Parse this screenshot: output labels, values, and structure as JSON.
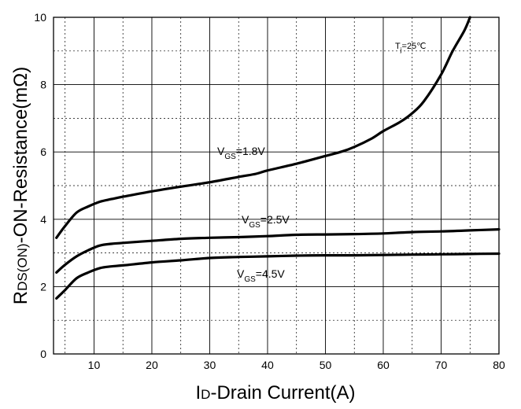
{
  "chart_data": {
    "type": "line",
    "xlim": [
      3,
      80
    ],
    "ylim": [
      0,
      10
    ],
    "x_ticks": [
      {
        "v": 10,
        "label": "10"
      },
      {
        "v": 20,
        "label": "20"
      },
      {
        "v": 30,
        "label": "30"
      },
      {
        "v": 40,
        "label": "40"
      },
      {
        "v": 50,
        "label": "50"
      },
      {
        "v": 60,
        "label": "60"
      },
      {
        "v": 70,
        "label": "70"
      },
      {
        "v": 80,
        "label": "80"
      }
    ],
    "y_ticks": [
      {
        "v": 0,
        "label": "0"
      },
      {
        "v": 2,
        "label": "2"
      },
      {
        "v": 4,
        "label": "4"
      },
      {
        "v": 6,
        "label": "6"
      },
      {
        "v": 8,
        "label": "8"
      },
      {
        "v": 10,
        "label": "10"
      }
    ],
    "x_grid_dashed": [
      5,
      15,
      25,
      35,
      45,
      55,
      65,
      75
    ],
    "y_grid_dashed": [
      1,
      3,
      5,
      7,
      9
    ],
    "grid": true,
    "xlabel": {
      "main": "I",
      "sub": "D",
      "rest": "-Drain Current(A)"
    },
    "ylabel": {
      "main": "R",
      "sub": "DS(ON)",
      "rest": "-ON-Resistance(mΩ)"
    },
    "temperature_note": {
      "main": "T",
      "sub": "j",
      "rest": "=25℃"
    },
    "series": [
      {
        "id": "vgs18",
        "label": {
          "main": "V",
          "sub": "GS",
          "rest": "=1.8V"
        },
        "points": [
          [
            3.5,
            3.45
          ],
          [
            5,
            3.8
          ],
          [
            7,
            4.2
          ],
          [
            9,
            4.38
          ],
          [
            11,
            4.52
          ],
          [
            13,
            4.6
          ],
          [
            15,
            4.67
          ],
          [
            20,
            4.83
          ],
          [
            25,
            4.97
          ],
          [
            30,
            5.1
          ],
          [
            35,
            5.26
          ],
          [
            38,
            5.35
          ],
          [
            40,
            5.45
          ],
          [
            45,
            5.65
          ],
          [
            50,
            5.88
          ],
          [
            53,
            6.02
          ],
          [
            55,
            6.15
          ],
          [
            58,
            6.4
          ],
          [
            60,
            6.62
          ],
          [
            63,
            6.9
          ],
          [
            65,
            7.15
          ],
          [
            67,
            7.5
          ],
          [
            70,
            8.3
          ],
          [
            72,
            9.0
          ],
          [
            74,
            9.6
          ],
          [
            75,
            10.0
          ]
        ]
      },
      {
        "id": "vgs25",
        "label": {
          "main": "V",
          "sub": "GS",
          "rest": "=2.5V"
        },
        "points": [
          [
            3.5,
            2.42
          ],
          [
            5,
            2.65
          ],
          [
            7,
            2.9
          ],
          [
            9,
            3.08
          ],
          [
            11,
            3.22
          ],
          [
            13,
            3.27
          ],
          [
            15,
            3.3
          ],
          [
            20,
            3.36
          ],
          [
            25,
            3.42
          ],
          [
            30,
            3.45
          ],
          [
            35,
            3.47
          ],
          [
            40,
            3.5
          ],
          [
            45,
            3.54
          ],
          [
            50,
            3.55
          ],
          [
            55,
            3.56
          ],
          [
            60,
            3.58
          ],
          [
            65,
            3.62
          ],
          [
            70,
            3.64
          ],
          [
            75,
            3.67
          ],
          [
            80,
            3.7
          ]
        ]
      },
      {
        "id": "vgs45",
        "label": {
          "main": "V",
          "sub": "GS",
          "rest": "=4.5V"
        },
        "points": [
          [
            3.5,
            1.65
          ],
          [
            5,
            1.9
          ],
          [
            7,
            2.25
          ],
          [
            9,
            2.42
          ],
          [
            11,
            2.55
          ],
          [
            13,
            2.6
          ],
          [
            15,
            2.63
          ],
          [
            20,
            2.72
          ],
          [
            25,
            2.78
          ],
          [
            30,
            2.85
          ],
          [
            35,
            2.88
          ],
          [
            40,
            2.9
          ],
          [
            45,
            2.92
          ],
          [
            50,
            2.93
          ],
          [
            55,
            2.93
          ],
          [
            60,
            2.94
          ],
          [
            65,
            2.95
          ],
          [
            70,
            2.96
          ],
          [
            75,
            2.97
          ],
          [
            80,
            2.98
          ]
        ]
      }
    ]
  }
}
